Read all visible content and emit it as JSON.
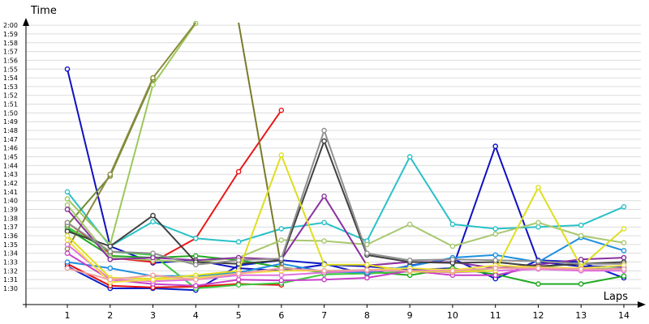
{
  "chart_data": {
    "type": "line",
    "ylabel": "Time",
    "xlabel": "Laps",
    "x": [
      1,
      2,
      3,
      4,
      5,
      6,
      7,
      8,
      9,
      10,
      11,
      12,
      13,
      14
    ],
    "ylim_seconds": [
      89.5,
      120.5
    ],
    "grid": true,
    "y_ticks": [
      "1:30",
      "1:31",
      "1:32",
      "1:33",
      "1:34",
      "1:35",
      "1:36",
      "1:37",
      "1:38",
      "1:39",
      "1:40",
      "1:41",
      "1:42",
      "1:43",
      "1:44",
      "1:45",
      "1:46",
      "1:47",
      "1:48",
      "1:49",
      "1:50",
      "1:51",
      "1:52",
      "1:53",
      "1:54",
      "1:55",
      "1:56",
      "1:57",
      "1:58",
      "1:59",
      "2:00"
    ],
    "series": [
      {
        "color": "#0a1ec8",
        "values": [
          92.5,
          90.0,
          90.0,
          89.8,
          92.6,
          93.2,
          92.8,
          91.6,
          92.6,
          93.4,
          91.1,
          93.2,
          93.0,
          91.2
        ]
      },
      {
        "color": "#1010c0",
        "values": [
          115.0,
          94.8,
          92.9,
          93.2,
          92.3,
          92.0,
          92.7,
          92.5,
          92.1,
          92.3,
          106.2,
          93.0,
          92.5,
          92.5
        ]
      },
      {
        "color": "#e01010",
        "values": [
          92.8,
          90.3,
          90.1,
          90.2,
          90.5,
          90.4,
          null,
          null,
          null,
          null,
          null,
          null,
          null,
          null
        ]
      },
      {
        "color": "#e81818",
        "values": [
          null,
          93.5,
          93.0,
          95.7,
          103.3,
          110.3,
          null,
          null,
          null,
          null,
          null,
          null,
          null,
          null
        ]
      },
      {
        "color": "#cc2020",
        "values": [
          97.5,
          94.0,
          null,
          null,
          null,
          null,
          null,
          null,
          null,
          null,
          null,
          null,
          null,
          null
        ]
      },
      {
        "color": "#22aa22",
        "values": [
          96.8,
          93.7,
          93.5,
          93.7,
          93.2,
          92.4,
          91.8,
          91.9,
          91.5,
          92.3,
          91.6,
          90.5,
          90.5,
          91.4
        ]
      },
      {
        "color": "#3cc83c",
        "values": [
          97.0,
          94.2,
          93.8,
          90.0,
          90.4,
          90.6,
          91.6,
          91.7,
          91.9,
          91.9,
          92.3,
          92.5,
          92.2,
          92.3
        ]
      },
      {
        "color": "#2ac0c8",
        "values": [
          101.0,
          94.8,
          97.6,
          95.7,
          95.3,
          96.8,
          97.5,
          95.4,
          105.0,
          97.3,
          96.8,
          97.0,
          97.2,
          99.3
        ]
      },
      {
        "color": "#1e90e0",
        "values": [
          93.0,
          92.3,
          91.4,
          91.4,
          91.8,
          92.8,
          91.9,
          91.8,
          92.5,
          93.5,
          93.8,
          93.0,
          95.8,
          94.3
        ]
      },
      {
        "color": "#6a8c30",
        "values": [
          97.2,
          102.8,
          113.8,
          null,
          null,
          null,
          null,
          null,
          null,
          null,
          null,
          null,
          null,
          null
        ]
      },
      {
        "color": "#9cc85a",
        "values": [
          100.2,
          95.0,
          113.2,
          120.2,
          null,
          null,
          null,
          null,
          null,
          null,
          null,
          null,
          null,
          null
        ]
      },
      {
        "color": "#8c8a3c",
        "values": [
          94.5,
          103.0,
          114.0,
          120.5,
          null,
          null,
          null,
          null,
          null,
          null,
          null,
          null,
          null,
          null
        ]
      },
      {
        "color": "#7a7a2a",
        "values": [
          null,
          null,
          null,
          null,
          120.5,
          92.4,
          null,
          null,
          null,
          null,
          null,
          null,
          null,
          null
        ]
      },
      {
        "color": "#a8c870",
        "values": [
          99.5,
          93.5,
          93.2,
          93.0,
          93.5,
          95.5,
          95.4,
          95.0,
          97.3,
          94.8,
          96.2,
          97.5,
          96.0,
          95.2
        ]
      },
      {
        "color": "#8a30a0",
        "values": [
          99.0,
          93.3,
          93.5,
          93.2,
          93.5,
          93.3,
          100.5,
          92.6,
          93.0,
          93.0,
          92.3,
          92.7,
          93.3,
          93.5
        ]
      },
      {
        "color": "#c840c8",
        "values": [
          94.0,
          91.0,
          90.5,
          90.3,
          91.0,
          90.9,
          91.0,
          91.2,
          92.0,
          91.5,
          91.5,
          92.5,
          92.0,
          92.3
        ]
      },
      {
        "color": "#e070e0",
        "values": [
          95.0,
          91.0,
          90.8,
          91.0,
          91.5,
          91.5,
          91.8,
          92.0,
          92.0,
          91.8,
          92.0,
          92.2,
          92.0,
          92.0
        ]
      },
      {
        "color": "#404040",
        "values": [
          96.5,
          94.8,
          98.3,
          93.0,
          92.8,
          93.2,
          106.8,
          93.8,
          93.0,
          92.9,
          93.0,
          92.5,
          92.8,
          93.0
        ]
      },
      {
        "color": "#909090",
        "values": [
          97.5,
          94.2,
          94.0,
          92.7,
          93.2,
          93.4,
          108.0,
          94.0,
          93.2,
          93.3,
          93.2,
          93.1,
          92.8,
          92.8
        ]
      },
      {
        "color": "#dede20",
        "values": [
          96.0,
          91.2,
          91.1,
          91.5,
          92.0,
          105.2,
          92.7,
          92.7,
          91.9,
          91.9,
          92.0,
          101.5,
          92.5,
          96.8
        ]
      },
      {
        "color": "#f2e040",
        "values": [
          95.5,
          90.7,
          91.0,
          91.2,
          91.7,
          92.0,
          92.0,
          92.1,
          92.3,
          92.1,
          92.6,
          92.4,
          92.3,
          92.6
        ]
      },
      {
        "color": "#f0a0a0",
        "values": [
          92.3,
          91.0,
          91.5,
          91.0,
          91.7,
          92.3,
          92.0,
          92.1,
          92.0,
          92.0,
          92.3,
          92.3,
          92.2,
          92.2
        ]
      }
    ]
  }
}
